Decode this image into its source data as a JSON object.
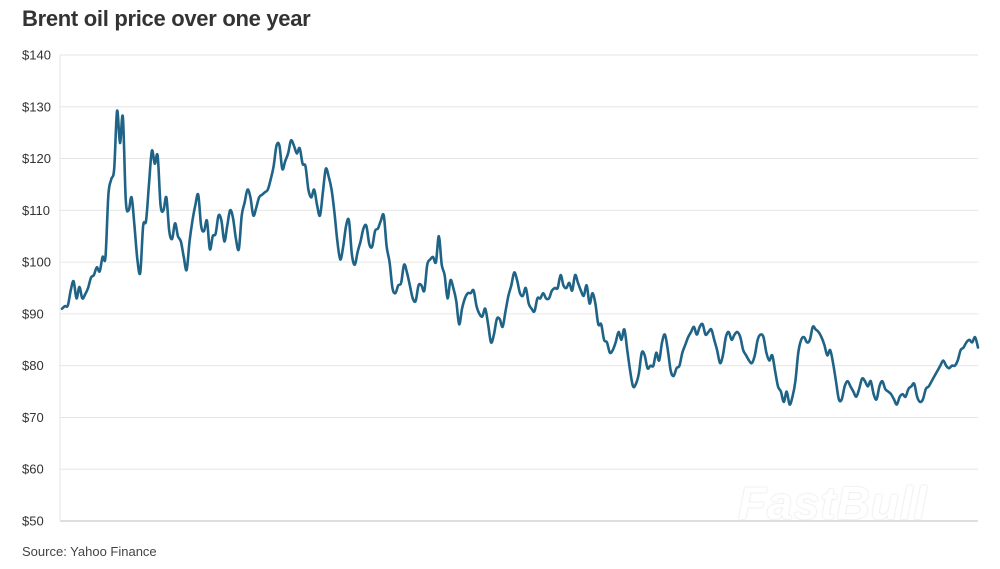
{
  "title": "Brent oil price over one year",
  "source": "Source: Yahoo Finance",
  "watermark": "FastBull",
  "chart_data": {
    "type": "line",
    "title": "Brent oil price over one year",
    "xlabel": "",
    "ylabel": "",
    "ylim": [
      50,
      140
    ],
    "yticks": [
      {
        "value": 140,
        "label": "$140"
      },
      {
        "value": 130,
        "label": "$130"
      },
      {
        "value": 120,
        "label": "$120"
      },
      {
        "value": 110,
        "label": "$110"
      },
      {
        "value": 100,
        "label": "$100"
      },
      {
        "value": 90,
        "label": "$90"
      },
      {
        "value": 80,
        "label": "$80"
      },
      {
        "value": 70,
        "label": "$70"
      },
      {
        "value": 60,
        "label": "$60"
      },
      {
        "value": 50,
        "label": "$50"
      }
    ],
    "grid": true,
    "line_color": "#1f6387",
    "series": [
      {
        "values": [
          91.0,
          91.5,
          91.6,
          94.5,
          96.3,
          93.0,
          95.2,
          93.0,
          93.8,
          95.0,
          97.0,
          97.5,
          99.0,
          98.2,
          101.0,
          101.0,
          113.0,
          116.0,
          118.0,
          129.2,
          123.0,
          128.0,
          112.0,
          110.0,
          112.5,
          107.0,
          100.5,
          98.0,
          107.0,
          108.0,
          115.0,
          121.5,
          119.0,
          120.5,
          111.0,
          110.0,
          112.5,
          106.0,
          104.5,
          107.5,
          105.0,
          104.0,
          101.0,
          98.5,
          104.0,
          108.0,
          111.0,
          113.0,
          107.0,
          106.0,
          108.0,
          102.5,
          105.0,
          105.5,
          109.0,
          108.0,
          104.0,
          107.0,
          110.0,
          108.5,
          104.5,
          102.5,
          109.0,
          111.5,
          114.0,
          112.5,
          109.0,
          110.5,
          112.5,
          113.0,
          113.5,
          114.0,
          116.0,
          118.5,
          122.5,
          122.5,
          118.0,
          119.5,
          121.0,
          123.5,
          122.5,
          121.0,
          122.0,
          119.0,
          118.5,
          114.0,
          112.5,
          114.0,
          111.0,
          109.0,
          113.5,
          118.0,
          116.5,
          114.0,
          109.5,
          104.0,
          100.5,
          103.0,
          107.0,
          108.0,
          101.5,
          99.5,
          102.0,
          104.0,
          106.5,
          107.0,
          103.5,
          103.0,
          106.0,
          106.5,
          108.0,
          109.0,
          103.0,
          100.0,
          95.0,
          94.0,
          95.5,
          96.0,
          99.5,
          98.0,
          95.5,
          93.0,
          92.5,
          95.5,
          95.5,
          94.5,
          99.5,
          100.5,
          101.0,
          100.0,
          105.0,
          99.5,
          97.5,
          93.0,
          96.5,
          95.0,
          92.5,
          88.0,
          91.0,
          93.0,
          94.0,
          94.0,
          94.5,
          91.5,
          90.0,
          89.5,
          91.0,
          88.0,
          84.5,
          86.0,
          89.0,
          89.0,
          87.5,
          90.5,
          93.5,
          95.5,
          98.0,
          96.5,
          94.0,
          93.5,
          95.0,
          92.0,
          91.0,
          90.5,
          93.0,
          93.0,
          94.0,
          93.0,
          93.0,
          94.5,
          95.0,
          95.0,
          97.5,
          95.5,
          95.0,
          96.0,
          94.5,
          97.5,
          96.0,
          94.5,
          93.5,
          95.5,
          92.0,
          94.0,
          92.0,
          88.0,
          88.0,
          85.0,
          84.5,
          82.5,
          83.0,
          84.5,
          86.5,
          85.0,
          87.0,
          83.0,
          79.0,
          76.0,
          76.5,
          78.5,
          82.5,
          82.0,
          79.5,
          80.0,
          80.0,
          82.5,
          81.0,
          84.5,
          86.0,
          83.0,
          79.0,
          78.0,
          79.5,
          80.0,
          82.5,
          84.0,
          85.5,
          86.5,
          87.5,
          86.0,
          87.5,
          88.0,
          86.0,
          86.5,
          87.0,
          85.0,
          83.0,
          80.5,
          82.0,
          85.5,
          86.5,
          85.0,
          86.0,
          86.5,
          85.5,
          83.0,
          82.0,
          81.0,
          80.5,
          82.0,
          85.0,
          86.0,
          85.5,
          82.5,
          81.0,
          82.0,
          79.0,
          76.0,
          75.0,
          73.0,
          75.0,
          72.5,
          74.0,
          77.0,
          82.5,
          85.0,
          85.5,
          84.5,
          85.0,
          87.5,
          87.0,
          86.5,
          85.5,
          84.0,
          82.0,
          83.0,
          80.5,
          77.0,
          73.5,
          73.5,
          76.0,
          77.0,
          76.0,
          75.0,
          74.0,
          75.5,
          77.5,
          77.0,
          76.0,
          77.0,
          74.5,
          73.5,
          76.0,
          77.0,
          75.5,
          75.0,
          74.5,
          73.5,
          72.5,
          74.0,
          74.5,
          74.0,
          75.5,
          76.0,
          76.5,
          74.0,
          73.0,
          73.5,
          75.5,
          76.0,
          77.0,
          78.0,
          79.0,
          80.0,
          81.0,
          80.0,
          79.5,
          80.0,
          80.0,
          81.0,
          83.0,
          83.5,
          84.5,
          85.0,
          84.5,
          85.5,
          83.5
        ]
      }
    ]
  }
}
